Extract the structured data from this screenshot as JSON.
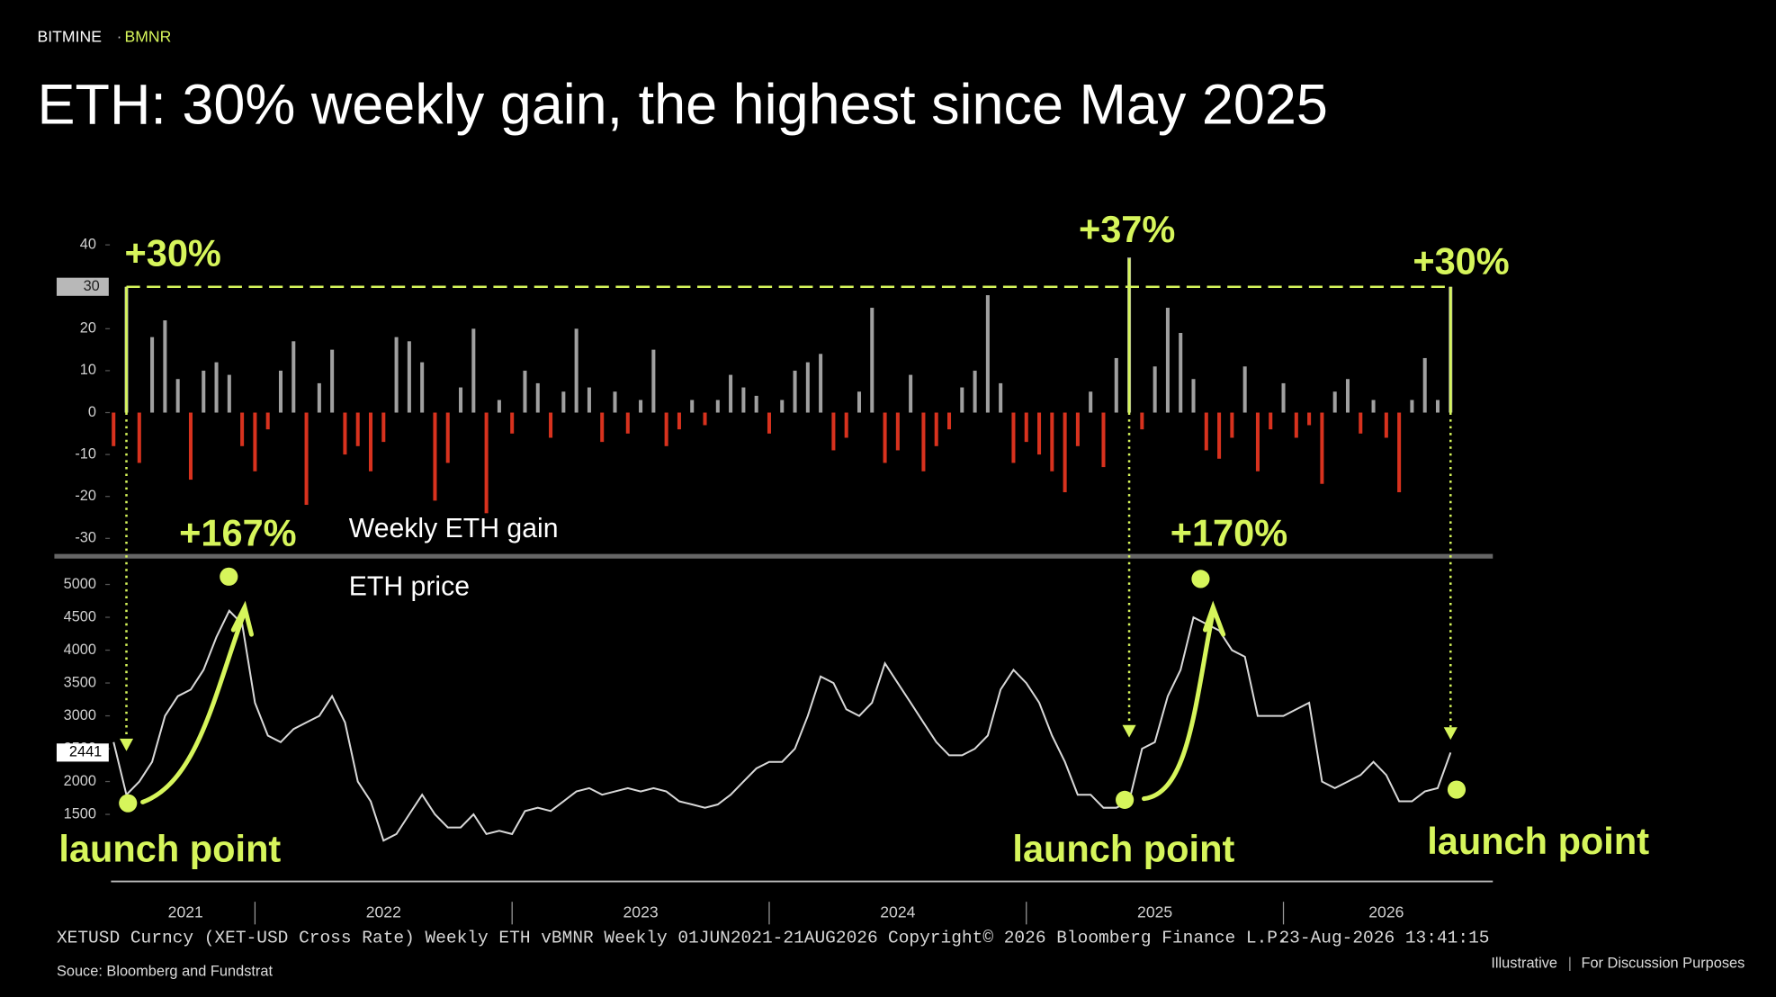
{
  "header": {
    "brand": "BITMINE",
    "ticker": "BMNR",
    "title": "ETH: 30% weekly gain, the highest since May 2025"
  },
  "chart_data": [
    {
      "type": "bar",
      "label": "Weekly ETH gain",
      "x": [
        2021.45,
        2021.5,
        2021.55,
        2021.6,
        2021.65,
        2021.7,
        2021.75,
        2021.8,
        2021.85,
        2021.9,
        2021.95,
        2022.0,
        2022.05,
        2022.1,
        2022.15,
        2022.2,
        2022.25,
        2022.3,
        2022.35,
        2022.4,
        2022.45,
        2022.5,
        2022.55,
        2022.6,
        2022.65,
        2022.7,
        2022.75,
        2022.8,
        2022.85,
        2022.9,
        2022.95,
        2023.0,
        2023.05,
        2023.1,
        2023.15,
        2023.2,
        2023.25,
        2023.3,
        2023.35,
        2023.4,
        2023.45,
        2023.5,
        2023.55,
        2023.6,
        2023.65,
        2023.7,
        2023.75,
        2023.8,
        2023.85,
        2023.9,
        2023.95,
        2024.0,
        2024.05,
        2024.1,
        2024.15,
        2024.2,
        2024.25,
        2024.3,
        2024.35,
        2024.4,
        2024.45,
        2024.5,
        2024.55,
        2024.6,
        2024.65,
        2024.7,
        2024.75,
        2024.8,
        2024.85,
        2024.9,
        2024.95,
        2025.0,
        2025.05,
        2025.1,
        2025.15,
        2025.2,
        2025.25,
        2025.3,
        2025.35,
        2025.4,
        2025.45,
        2025.5,
        2025.55,
        2025.6,
        2025.65,
        2025.7,
        2025.75,
        2025.8,
        2025.85,
        2025.9,
        2025.95,
        2026.0,
        2026.05,
        2026.1,
        2026.15,
        2026.2,
        2026.25,
        2026.3,
        2026.35,
        2026.4,
        2026.45,
        2026.5,
        2026.55,
        2026.6,
        2026.65
      ],
      "values": [
        -8,
        30,
        -12,
        18,
        22,
        8,
        -16,
        10,
        12,
        9,
        -8,
        -14,
        -4,
        10,
        17,
        -22,
        7,
        15,
        -10,
        -8,
        -14,
        -7,
        18,
        17,
        12,
        -21,
        -12,
        6,
        20,
        -24,
        3,
        -5,
        10,
        7,
        -6,
        5,
        20,
        6,
        -7,
        5,
        -5,
        3,
        15,
        -8,
        -4,
        3,
        -3,
        3,
        9,
        6,
        4,
        -5,
        3,
        10,
        12,
        14,
        -9,
        -6,
        5,
        25,
        -12,
        -9,
        9,
        -14,
        -8,
        -4,
        6,
        10,
        28,
        7,
        -12,
        -7,
        -10,
        -14,
        -19,
        -8,
        5,
        -13,
        13,
        37,
        -4,
        11,
        25,
        19,
        8,
        -9,
        -11,
        -6,
        11,
        -14,
        -4,
        7,
        -6,
        -3,
        -17,
        5,
        8,
        -5,
        3,
        -6,
        -19,
        3,
        13,
        3,
        30
      ],
      "color_up": "#a0a0a0",
      "color_down": "#d8321e",
      "xlim": [
        2021.44,
        2026.81
      ],
      "ylim": [
        -34,
        43
      ],
      "yticks": [
        -30,
        -20,
        -10,
        0,
        10,
        20,
        30,
        40
      ],
      "reference_line": 30,
      "annotations": [
        "+30%",
        "+37%",
        "+30%"
      ],
      "accent_color": "#d6f55b"
    },
    {
      "type": "line",
      "label": "ETH price",
      "x": [
        2021.45,
        2021.5,
        2021.55,
        2021.6,
        2021.65,
        2021.7,
        2021.75,
        2021.8,
        2021.85,
        2021.9,
        2021.95,
        2022.0,
        2022.05,
        2022.1,
        2022.15,
        2022.2,
        2022.25,
        2022.3,
        2022.35,
        2022.4,
        2022.45,
        2022.5,
        2022.55,
        2022.6,
        2022.65,
        2022.7,
        2022.75,
        2022.8,
        2022.85,
        2022.9,
        2022.95,
        2023.0,
        2023.05,
        2023.1,
        2023.15,
        2023.2,
        2023.25,
        2023.3,
        2023.35,
        2023.4,
        2023.45,
        2023.5,
        2023.55,
        2023.6,
        2023.65,
        2023.7,
        2023.75,
        2023.8,
        2023.85,
        2023.9,
        2023.95,
        2024.0,
        2024.05,
        2024.1,
        2024.15,
        2024.2,
        2024.25,
        2024.3,
        2024.35,
        2024.4,
        2024.45,
        2024.5,
        2024.55,
        2024.6,
        2024.65,
        2024.7,
        2024.75,
        2024.8,
        2024.85,
        2024.9,
        2024.95,
        2025.0,
        2025.05,
        2025.1,
        2025.15,
        2025.2,
        2025.25,
        2025.3,
        2025.35,
        2025.4,
        2025.45,
        2025.5,
        2025.55,
        2025.6,
        2025.65,
        2025.7,
        2025.75,
        2025.8,
        2025.85,
        2025.9,
        2025.95,
        2026.0,
        2026.05,
        2026.1,
        2026.15,
        2026.2,
        2026.25,
        2026.3,
        2026.35,
        2026.4,
        2026.45,
        2026.5,
        2026.55,
        2026.6,
        2026.65
      ],
      "values": [
        2600,
        1800,
        2000,
        2300,
        3000,
        3300,
        3400,
        3700,
        4200,
        4600,
        4400,
        3200,
        2700,
        2600,
        2800,
        2900,
        3000,
        3300,
        2900,
        2000,
        1700,
        1100,
        1200,
        1500,
        1800,
        1500,
        1300,
        1300,
        1500,
        1200,
        1250,
        1200,
        1550,
        1600,
        1550,
        1700,
        1850,
        1900,
        1800,
        1850,
        1900,
        1850,
        1900,
        1850,
        1700,
        1650,
        1600,
        1650,
        1800,
        2000,
        2200,
        2300,
        2300,
        2500,
        3000,
        3600,
        3500,
        3100,
        3000,
        3200,
        3800,
        3500,
        3200,
        2900,
        2600,
        2400,
        2400,
        2500,
        2700,
        3400,
        3700,
        3500,
        3200,
        2700,
        2300,
        1800,
        1800,
        1600,
        1600,
        1700,
        2500,
        2600,
        3300,
        3700,
        4500,
        4400,
        4300,
        4000,
        3900,
        3000,
        3000,
        3000,
        3100,
        3200,
        2000,
        1900,
        2000,
        2100,
        2300,
        2100,
        1700,
        1700,
        1850,
        1900,
        2441
      ],
      "color": "#d8d8d8",
      "xlim": [
        2021.44,
        2026.81
      ],
      "ylim": [
        480,
        5360
      ],
      "yticks": [
        1500,
        2000,
        2500,
        3000,
        3500,
        4000,
        4500,
        5000
      ],
      "xticks": [
        2022,
        2023,
        2024,
        2025,
        2026
      ],
      "xtick_labels": [
        {
          "value": 2021.73,
          "label": "2021"
        },
        {
          "value": 2022.5,
          "label": "2022"
        },
        {
          "value": 2023.5,
          "label": "2023"
        },
        {
          "value": 2024.5,
          "label": "2024"
        },
        {
          "value": 2025.5,
          "label": "2025"
        },
        {
          "value": 2026.4,
          "label": "2026"
        }
      ],
      "annotations": [
        "+167%",
        "+170%"
      ],
      "launch_labels": [
        "launch point",
        "launch point",
        "launch point"
      ],
      "accent_color": "#d6f55b"
    }
  ],
  "footer": {
    "bloomberg": "XETUSD Curncy (XET-USD Cross Rate) Weekly ETH vBMNR Weekly 01JUN2021-21AUG2026",
    "copyright": "Copyright© 2026 Bloomberg Finance L.P.",
    "timestamp": "23-Aug-2026 13:41:15",
    "source": "Souce: Bloomberg and Fundstrat",
    "note1": "Illustrative",
    "note2": "For Discussion Purposes"
  }
}
